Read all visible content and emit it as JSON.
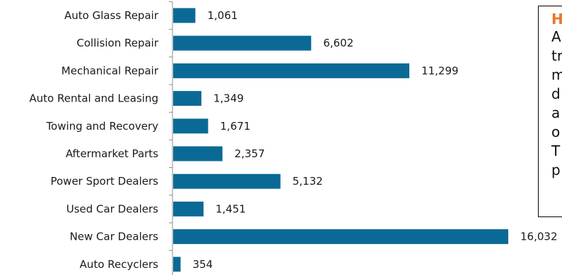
{
  "chart_data": {
    "type": "bar",
    "orientation": "horizontal",
    "categories": [
      "Auto Glass Repair",
      "Collision Repair",
      "Mechanical Repair",
      "Auto Rental and Leasing",
      "Towing and Recovery",
      "Aftermarket Parts",
      "Power Sport Dealers",
      "Used Car Dealers",
      "New Car Dealers",
      "Auto Recyclers"
    ],
    "values": [
      1061,
      6602,
      11299,
      1349,
      1671,
      2357,
      5132,
      1451,
      16032,
      354
    ],
    "value_labels": [
      "1,061",
      "6,602",
      "11,299",
      "1,349",
      "1,671",
      "2,357",
      "5,132",
      "1,451",
      "16,032",
      "354"
    ],
    "xlim": [
      0,
      16032
    ],
    "grid": false,
    "bar_color": "#0b6a95"
  },
  "note_box": {
    "heading": "H",
    "lines": [
      "A",
      "tr",
      "m",
      "d",
      "a",
      "o",
      "T",
      "p"
    ],
    "heading_color": "#e8762b"
  }
}
